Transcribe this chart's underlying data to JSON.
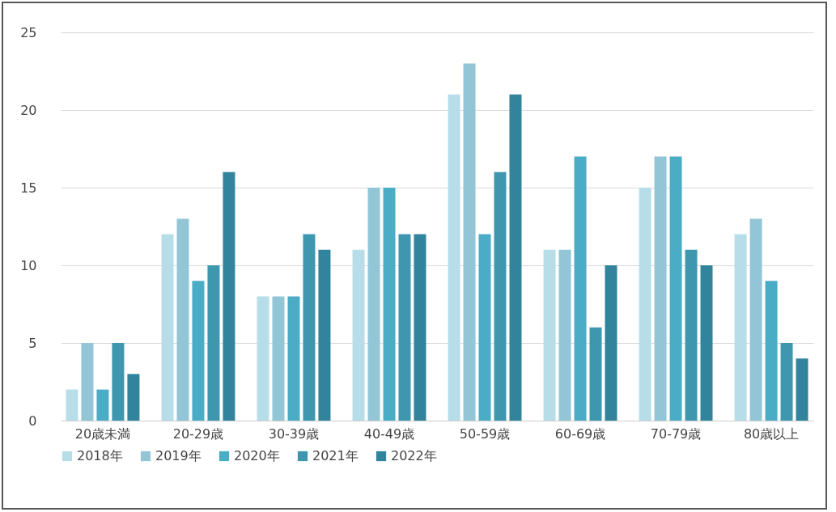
{
  "chart_data": {
    "type": "bar",
    "categories": [
      "20歳未満",
      "20-29歳",
      "30-39歳",
      "40-49歳",
      "50-59歳",
      "60-69歳",
      "70-79歳",
      "80歳以上"
    ],
    "series": [
      {
        "name": "2018年",
        "color": "#b7dde8",
        "values": [
          2,
          12,
          8,
          11,
          21,
          11,
          15,
          12
        ]
      },
      {
        "name": "2019年",
        "color": "#92c5d6",
        "values": [
          5,
          13,
          8,
          15,
          23,
          11,
          17,
          13
        ]
      },
      {
        "name": "2020年",
        "color": "#4bacc6",
        "values": [
          2,
          9,
          8,
          15,
          12,
          17,
          17,
          9
        ]
      },
      {
        "name": "2021年",
        "color": "#3f97af",
        "values": [
          5,
          10,
          12,
          12,
          16,
          6,
          11,
          5
        ]
      },
      {
        "name": "2022年",
        "color": "#31849b",
        "values": [
          3,
          16,
          11,
          12,
          21,
          10,
          10,
          4
        ]
      }
    ],
    "ylim": [
      0,
      25
    ],
    "yticks": [
      0,
      5,
      10,
      15,
      20,
      25
    ],
    "grid": "y",
    "legend": "bottom"
  }
}
